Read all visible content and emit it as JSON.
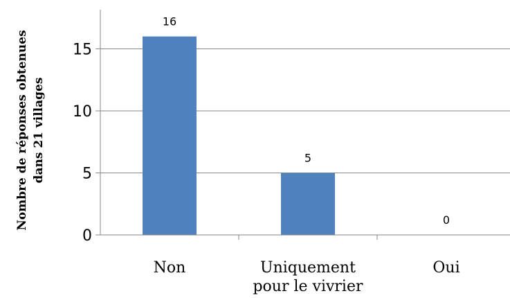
{
  "chart_data": {
    "type": "bar",
    "categories": [
      "Non",
      "Uniquement pour le vivrier",
      "Oui"
    ],
    "category_label_lines": [
      [
        "Non"
      ],
      [
        "Uniquement",
        "pour le vivrier"
      ],
      [
        "Oui"
      ]
    ],
    "values": [
      16,
      5,
      0
    ],
    "data_labels": [
      "16",
      "5",
      "0"
    ],
    "title": "",
    "xlabel": "",
    "ylabel": "Nombre de réponses obtenues dans 21 villages",
    "ylabel_lines": [
      "Nombre de réponses obtenues",
      "dans 21 villages"
    ],
    "ylim": [
      0,
      17
    ],
    "yticks": [
      0,
      5,
      10,
      15
    ],
    "ytick_labels": [
      "0",
      "5",
      "10",
      "15"
    ],
    "grid": true,
    "legend": "none",
    "colors": {
      "bar": "#4F81BD",
      "grid": "#868686",
      "axis": "#868686"
    }
  }
}
